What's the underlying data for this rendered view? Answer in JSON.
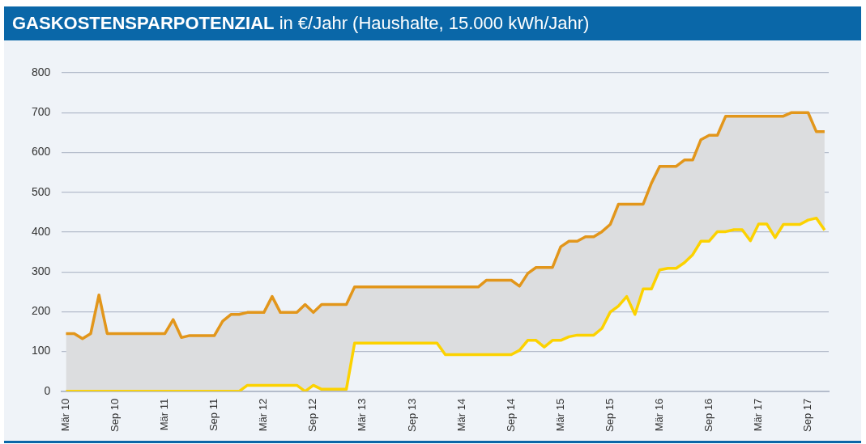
{
  "chart_data": {
    "type": "area",
    "title": "GASKOSTENSPARPOTENZIAL in €/Jahr (Haushalte, 15.000 kWh/Jahr)",
    "categories": [
      "Mär 10",
      null,
      null,
      null,
      null,
      null,
      "Sep 10",
      null,
      null,
      null,
      null,
      null,
      "Mär 11",
      null,
      null,
      null,
      null,
      null,
      "Sep 11",
      null,
      null,
      null,
      null,
      null,
      "Mär 12",
      null,
      null,
      null,
      null,
      null,
      "Sep 12",
      null,
      null,
      null,
      null,
      null,
      "Mär 13",
      null,
      null,
      null,
      null,
      null,
      "Sep 13",
      null,
      null,
      null,
      null,
      null,
      "Mär 14",
      null,
      null,
      null,
      null,
      null,
      "Sep 14",
      null,
      null,
      null,
      null,
      null,
      "Mär 15",
      null,
      null,
      null,
      null,
      null,
      "Sep 15",
      null,
      null,
      null,
      null,
      null,
      "Mär 16",
      null,
      null,
      null,
      null,
      null,
      "Sep 16",
      null,
      null,
      null,
      null,
      null,
      "Mär 17",
      null,
      null,
      null,
      null,
      null,
      "Sep 17",
      null,
      null
    ],
    "series": [
      {
        "color": "#e2961b",
        "values": [
          145,
          145,
          132,
          145,
          242,
          145,
          145,
          145,
          145,
          145,
          145,
          145,
          145,
          180,
          135,
          140,
          140,
          140,
          140,
          176,
          193,
          193,
          198,
          198,
          198,
          238,
          198,
          198,
          198,
          218,
          198,
          218,
          218,
          218,
          218,
          262,
          262,
          262,
          262,
          262,
          262,
          262,
          262,
          262,
          262,
          262,
          262,
          262,
          262,
          262,
          262,
          279,
          279,
          279,
          279,
          264,
          296,
          311,
          311,
          311,
          363,
          377,
          377,
          388,
          388,
          401,
          419,
          470,
          470,
          470,
          470,
          523,
          565,
          565,
          565,
          581,
          581,
          632,
          643,
          643,
          691,
          691,
          691,
          691,
          691,
          691,
          691,
          691,
          700,
          700,
          700,
          652,
          652
        ]
      },
      {
        "type": "line",
        "color": "#fcd200",
        "values": [
          0,
          0,
          0,
          0,
          0,
          0,
          0,
          0,
          0,
          0,
          0,
          0,
          0,
          0,
          0,
          0,
          0,
          0,
          0,
          0,
          0,
          0,
          15,
          15,
          15,
          15,
          15,
          15,
          15,
          0,
          15,
          5,
          5,
          5,
          5,
          121,
          121,
          121,
          121,
          121,
          121,
          121,
          121,
          121,
          121,
          121,
          92,
          92,
          92,
          92,
          92,
          92,
          92,
          92,
          92,
          103,
          128,
          128,
          111,
          128,
          128,
          137,
          141,
          141,
          141,
          158,
          199,
          214,
          238,
          193,
          257,
          257,
          305,
          309,
          309,
          323,
          343,
          377,
          377,
          401,
          401,
          406,
          406,
          378,
          420,
          420,
          386,
          419,
          419,
          419,
          430,
          435,
          405
        ]
      }
    ],
    "ylim": [
      0,
      800
    ],
    "yticks": [
      0,
      100,
      200,
      300,
      400,
      500,
      600,
      700,
      800
    ],
    "grid": "y"
  }
}
